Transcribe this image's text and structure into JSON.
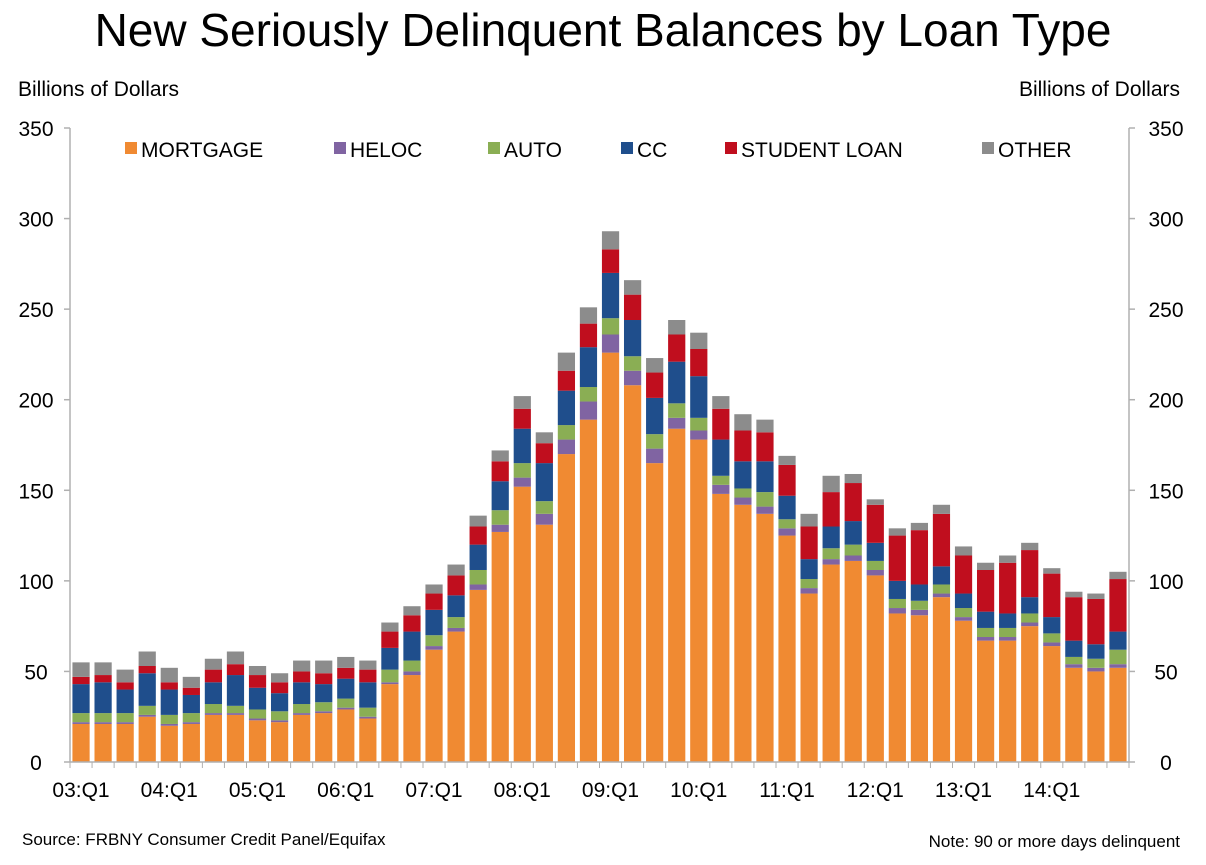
{
  "title": "New Seriously Delinquent Balances by Loan Type",
  "left_axis_unit": "Billions of Dollars",
  "right_axis_unit": "Billions of Dollars",
  "source": "Source: FRBNY Consumer Credit Panel/Equifax",
  "note": "Note:  90 or more days delinquent",
  "chart_data": {
    "type": "bar",
    "stacked": true,
    "ylim": [
      0,
      350
    ],
    "yticks": [
      0,
      50,
      100,
      150,
      200,
      250,
      300,
      350
    ],
    "x_tick_labels": [
      "03:Q1",
      "04:Q1",
      "05:Q1",
      "06:Q1",
      "07:Q1",
      "08:Q1",
      "09:Q1",
      "10:Q1",
      "11:Q1",
      "12:Q1",
      "13:Q1",
      "14:Q1"
    ],
    "legend_position": "top",
    "grid": false,
    "categories": [
      "03:Q1",
      "03:Q2",
      "03:Q3",
      "03:Q4",
      "04:Q1",
      "04:Q2",
      "04:Q3",
      "04:Q4",
      "05:Q1",
      "05:Q2",
      "05:Q3",
      "05:Q4",
      "06:Q1",
      "06:Q2",
      "06:Q3",
      "06:Q4",
      "07:Q1",
      "07:Q2",
      "07:Q3",
      "07:Q4",
      "08:Q1",
      "08:Q2",
      "08:Q3",
      "08:Q4",
      "09:Q1",
      "09:Q2",
      "09:Q3",
      "09:Q4",
      "10:Q1",
      "10:Q2",
      "10:Q3",
      "10:Q4",
      "11:Q1",
      "11:Q2",
      "11:Q3",
      "11:Q4",
      "12:Q1",
      "12:Q2",
      "12:Q3",
      "12:Q4",
      "13:Q1",
      "13:Q2",
      "13:Q3",
      "13:Q4",
      "14:Q1",
      "14:Q2",
      "14:Q3",
      "14:Q4"
    ],
    "series": [
      {
        "name": "MORTGAGE",
        "color": "#F08A32",
        "values": [
          21,
          21,
          21,
          25,
          20,
          21,
          26,
          26,
          23,
          22,
          26,
          27,
          29,
          24,
          43,
          48,
          62,
          72,
          95,
          127,
          152,
          131,
          170,
          189,
          226,
          208,
          165,
          184,
          178,
          148,
          142,
          137,
          125,
          93,
          109,
          111,
          103,
          82,
          81,
          91,
          78,
          67,
          67,
          75,
          64,
          52,
          50,
          52
        ]
      },
      {
        "name": "HELOC",
        "color": "#8064A2",
        "values": [
          1,
          1,
          1,
          1,
          1,
          1,
          1,
          1,
          1,
          1,
          1,
          1,
          1,
          1,
          1,
          2,
          2,
          2,
          3,
          4,
          5,
          6,
          8,
          10,
          10,
          8,
          8,
          6,
          5,
          5,
          4,
          4,
          4,
          3,
          3,
          3,
          3,
          3,
          3,
          2,
          2,
          2,
          2,
          2,
          2,
          2,
          2,
          2
        ]
      },
      {
        "name": "AUTO",
        "color": "#8AAE54",
        "values": [
          5,
          5,
          5,
          5,
          5,
          5,
          5,
          4,
          5,
          5,
          5,
          5,
          5,
          5,
          7,
          6,
          6,
          6,
          8,
          8,
          8,
          7,
          8,
          8,
          9,
          8,
          8,
          8,
          7,
          5,
          5,
          8,
          5,
          5,
          6,
          6,
          5,
          5,
          5,
          5,
          5,
          5,
          5,
          5,
          5,
          4,
          5,
          8
        ]
      },
      {
        "name": "CC",
        "color": "#1F4E8C",
        "values": [
          16,
          17,
          13,
          18,
          14,
          10,
          12,
          17,
          12,
          10,
          12,
          10,
          11,
          14,
          12,
          16,
          14,
          12,
          14,
          16,
          19,
          21,
          19,
          22,
          25,
          20,
          20,
          23,
          23,
          20,
          15,
          17,
          13,
          11,
          12,
          13,
          10,
          10,
          9,
          10,
          8,
          9,
          8,
          9,
          9,
          9,
          8,
          10
        ]
      },
      {
        "name": "STUDENT LOAN",
        "color": "#C00E1E",
        "values": [
          4,
          4,
          4,
          4,
          4,
          4,
          7,
          6,
          7,
          6,
          6,
          6,
          6,
          7,
          9,
          9,
          9,
          11,
          10,
          11,
          11,
          11,
          11,
          13,
          13,
          14,
          14,
          15,
          15,
          17,
          17,
          16,
          17,
          18,
          19,
          21,
          21,
          25,
          30,
          29,
          21,
          23,
          28,
          26,
          24,
          24,
          25,
          29
        ]
      },
      {
        "name": "OTHER",
        "color": "#8C8C8C",
        "values": [
          8,
          7,
          7,
          8,
          8,
          6,
          6,
          7,
          5,
          5,
          6,
          7,
          6,
          5,
          5,
          5,
          5,
          6,
          6,
          6,
          7,
          6,
          10,
          9,
          10,
          8,
          8,
          8,
          9,
          7,
          9,
          7,
          5,
          7,
          9,
          5,
          3,
          4,
          4,
          5,
          5,
          4,
          4,
          4,
          3,
          3,
          3,
          4
        ]
      }
    ]
  }
}
